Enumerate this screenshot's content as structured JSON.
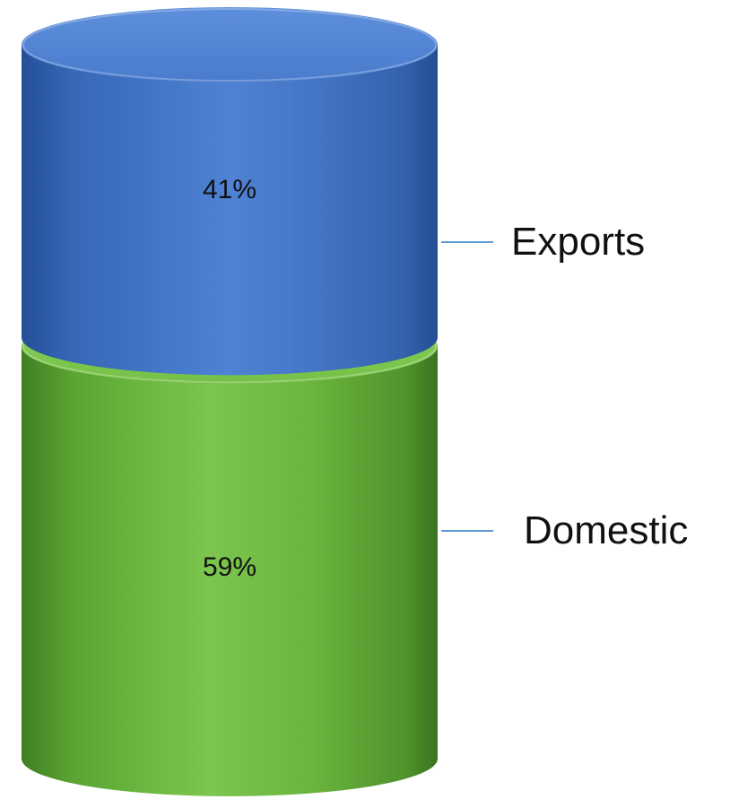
{
  "chart_data": {
    "type": "bar",
    "subtype": "stacked-100-cylinder",
    "categories": [
      ""
    ],
    "series": [
      {
        "name": "Domestic",
        "values": [
          59
        ],
        "label": "59%",
        "color": "#6db33f"
      },
      {
        "name": "Exports",
        "values": [
          41
        ],
        "label": "41%",
        "color": "#4677c8"
      }
    ],
    "ylim": [
      0,
      100
    ],
    "grid": false,
    "legend": "right"
  }
}
